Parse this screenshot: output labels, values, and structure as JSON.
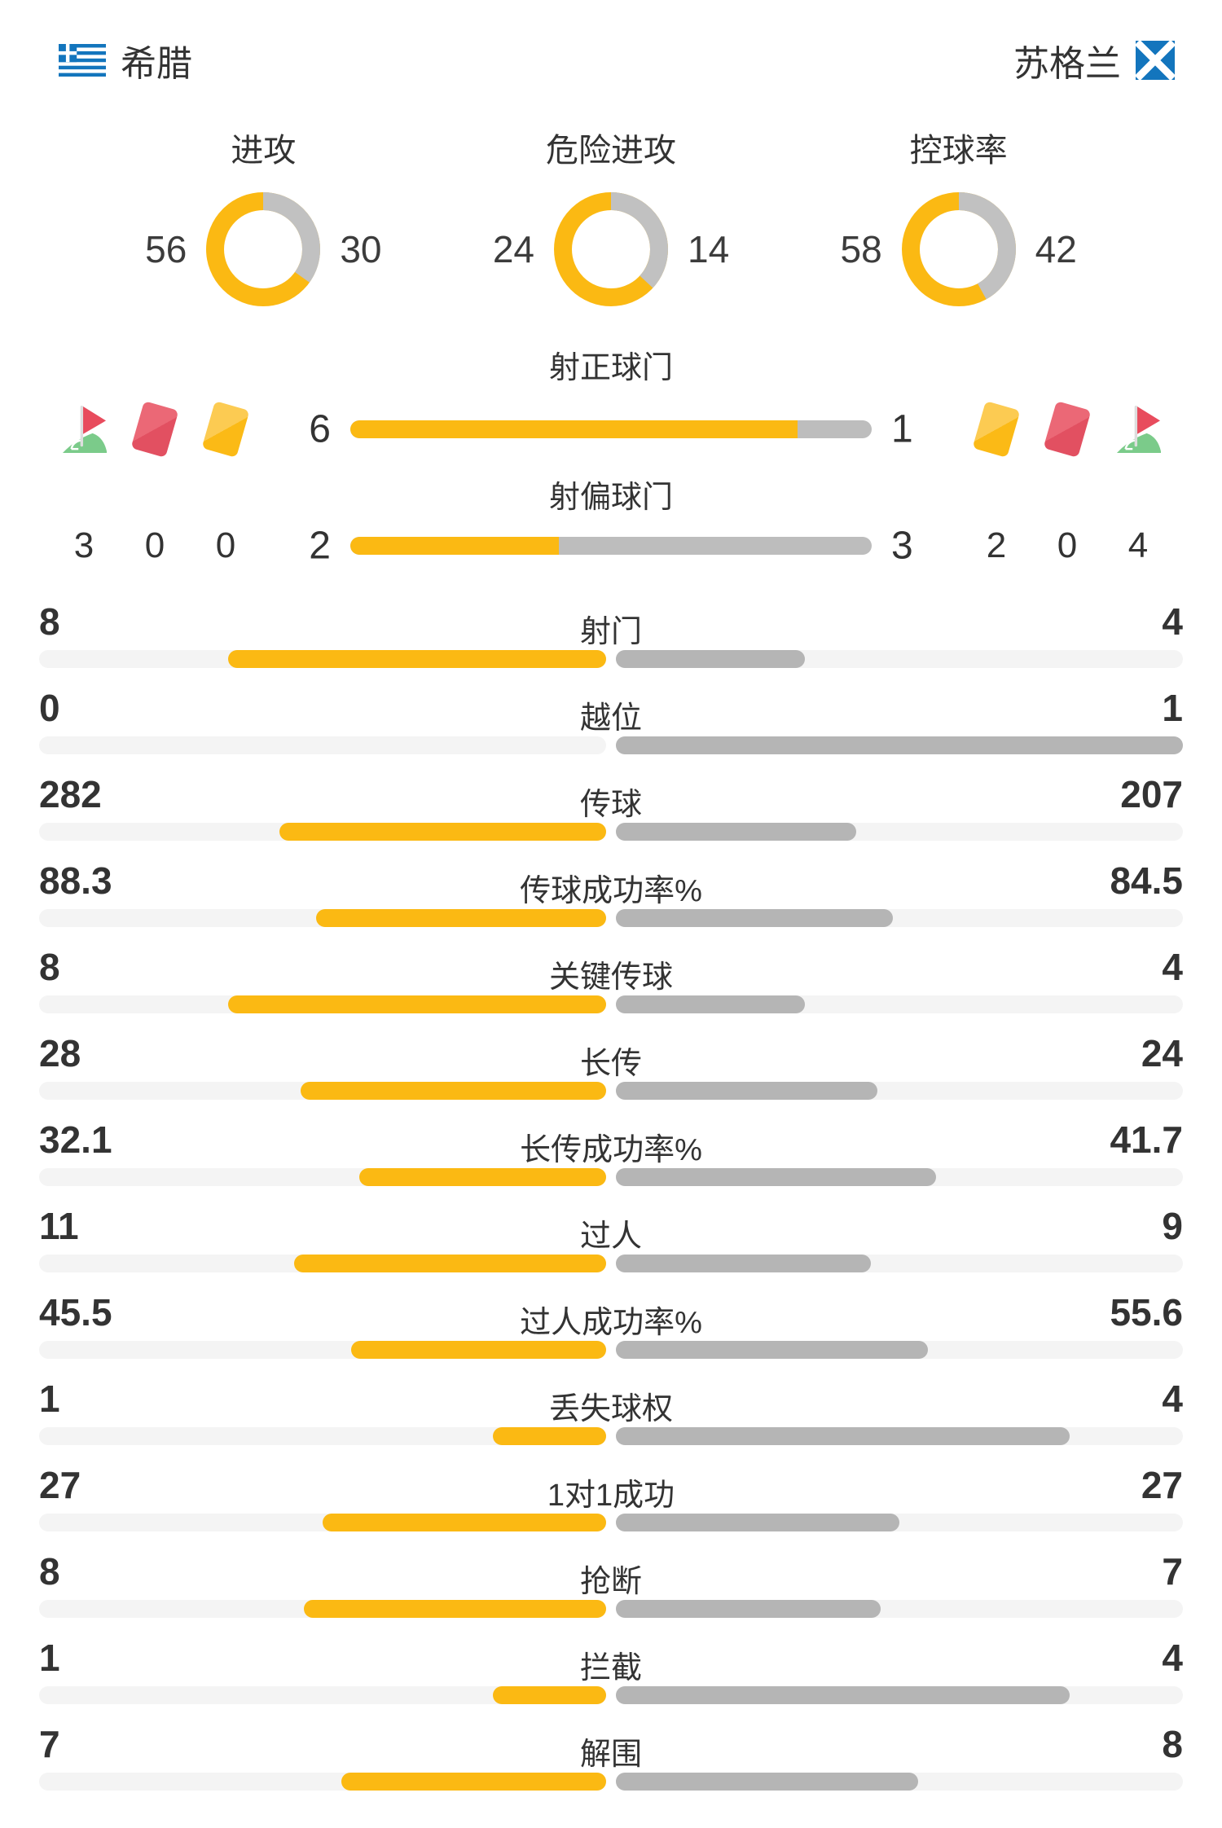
{
  "header": {
    "home": {
      "name": "希腊"
    },
    "away": {
      "name": "苏格兰"
    }
  },
  "donuts": [
    {
      "title": "进攻",
      "home": 56,
      "away": 30
    },
    {
      "title": "危险进攻",
      "home": 24,
      "away": 14
    },
    {
      "title": "控球率",
      "home": 58,
      "away": 42
    }
  ],
  "highlight_rows": [
    {
      "label": "射正球门",
      "home": 6,
      "away": 1
    },
    {
      "label": "射偏球门",
      "home": 2,
      "away": 3
    }
  ],
  "discipline": {
    "left": {
      "corner_flag": "3",
      "red_card": "0",
      "yellow_card": "0"
    },
    "right": {
      "yellow_card": "2",
      "red_card": "0",
      "corner_flag": "4"
    }
  },
  "stats": [
    {
      "label": "射门",
      "home": "8",
      "away": "4"
    },
    {
      "label": "越位",
      "home": "0",
      "away": "1"
    },
    {
      "label": "传球",
      "home": "282",
      "away": "207"
    },
    {
      "label": "传球成功率%",
      "home": "88.3",
      "away": "84.5"
    },
    {
      "label": "关键传球",
      "home": "8",
      "away": "4"
    },
    {
      "label": "长传",
      "home": "28",
      "away": "24"
    },
    {
      "label": "长传成功率%",
      "home": "32.1",
      "away": "41.7"
    },
    {
      "label": "过人",
      "home": "11",
      "away": "9"
    },
    {
      "label": "过人成功率%",
      "home": "45.5",
      "away": "55.6"
    },
    {
      "label": "丢失球权",
      "home": "1",
      "away": "4"
    },
    {
      "label": "1对1成功",
      "home": "27",
      "away": "27"
    },
    {
      "label": "抢断",
      "home": "8",
      "away": "7"
    },
    {
      "label": "拦截",
      "home": "1",
      "away": "4"
    },
    {
      "label": "解围",
      "home": "7",
      "away": "8"
    }
  ],
  "colors": {
    "accent": "#fbb913",
    "bar_gray": "#b5b5b5",
    "donut_gray": "#c1c1c1",
    "track": "#f4f4f4",
    "text": "#333333",
    "flag_blue": "#1375bd",
    "card_red": "#e25061",
    "card_yellow": "#fbba16",
    "flag_green": "#7bcb8a",
    "flag_red": "#e84c5d"
  }
}
